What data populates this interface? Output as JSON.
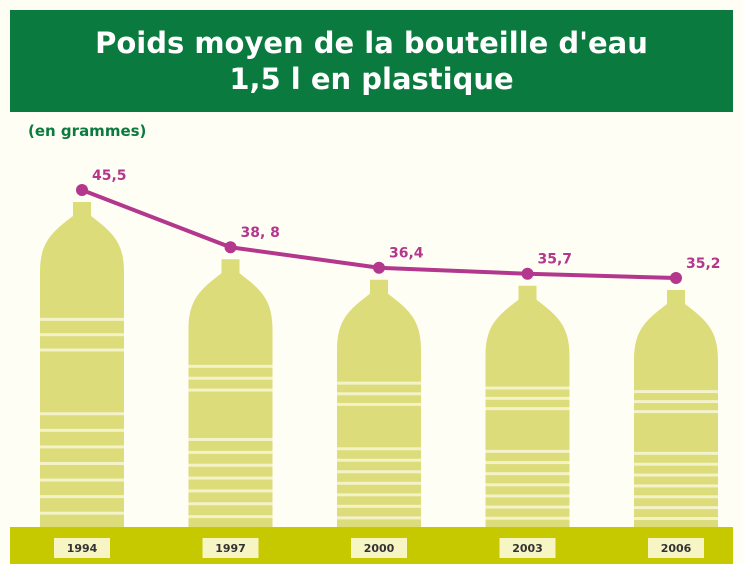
{
  "chart_data": {
    "type": "line",
    "title": "Poids moyen de la bouteille d'eau 1,5 l en plastique",
    "subtitle": "(en grammes)",
    "categories": [
      "1994",
      "1997",
      "2000",
      "2003",
      "2006"
    ],
    "values": [
      45.5,
      38.8,
      36.4,
      35.7,
      35.2
    ],
    "value_labels": [
      "45,5",
      "38, 8",
      "36,4",
      "35,7",
      "35,2"
    ],
    "color": "#b3378c"
  }
}
